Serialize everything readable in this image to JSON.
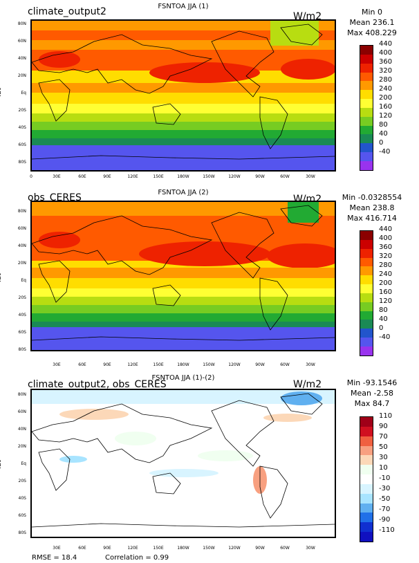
{
  "panels": [
    {
      "title_left": "climate_output2",
      "title_mid": "FSNTOA JJA (1)",
      "units": "W/m2",
      "stats": [
        "Min 0",
        "Mean 236.1",
        "Max 408.229"
      ],
      "ylabel": "lat",
      "lat_ticks": [
        "80N",
        "60N",
        "40N",
        "20N",
        "Eq",
        "20S",
        "40S",
        "60S",
        "80S"
      ],
      "lon_ticks": [
        "0",
        "30E",
        "60E",
        "90E",
        "120E",
        "150E",
        "180W",
        "150W",
        "120W",
        "90W",
        "60W",
        "30W"
      ],
      "colorbar_labels": [
        "440",
        "400",
        "360",
        "320",
        "280",
        "240",
        "200",
        "160",
        "120",
        "80",
        "40",
        "0",
        "-40"
      ],
      "colorbar_colors": [
        "#8b0000",
        "#cc0000",
        "#ee2200",
        "#ff5a00",
        "#ff9900",
        "#ffdd00",
        "#ffff33",
        "#b8dd11",
        "#77cc22",
        "#22aa33",
        "#1a8a55",
        "#2255cc",
        "#5555ee",
        "#9933ee"
      ]
    },
    {
      "title_left": "obs_CERES",
      "title_mid": "FSNTOA JJA (2)",
      "units": "W/m2",
      "stats": [
        "Min -0.0328554",
        "Mean 238.8",
        "Max 416.714"
      ],
      "ylabel": "lat",
      "lat_ticks": [
        "80N",
        "60N",
        "40N",
        "20N",
        "Eq",
        "20S",
        "40S",
        "60S",
        "80S"
      ],
      "lon_ticks": [
        "30E",
        "60E",
        "90E",
        "120E",
        "150E",
        "180W",
        "150W",
        "120W",
        "90W",
        "60W",
        "30W"
      ],
      "colorbar_labels": [
        "440",
        "400",
        "360",
        "320",
        "280",
        "240",
        "200",
        "160",
        "120",
        "80",
        "40",
        "0",
        "-40"
      ],
      "colorbar_colors": [
        "#8b0000",
        "#cc0000",
        "#ee2200",
        "#ff5a00",
        "#ff9900",
        "#ffdd00",
        "#ffff33",
        "#b8dd11",
        "#77cc22",
        "#22aa33",
        "#1a8a55",
        "#2255cc",
        "#5555ee",
        "#9933ee"
      ]
    },
    {
      "title_left": "climate_output2, obs_CERES",
      "title_mid": "FSNTOA JJA (1)-(2)",
      "units": "W/m2",
      "stats": [
        "Min -93.1546",
        "Mean -2.58",
        "Max 84.7"
      ],
      "ylabel": "lat",
      "lat_ticks": [
        "80N",
        "60N",
        "40N",
        "20N",
        "Eq",
        "20S",
        "40S",
        "60S",
        "80S"
      ],
      "lon_ticks": [
        "30E",
        "60E",
        "90E",
        "120E",
        "150E",
        "180W",
        "150W",
        "120W",
        "90W",
        "60W",
        "30W"
      ],
      "colorbar_labels": [
        "110",
        "90",
        "70",
        "50",
        "30",
        "10",
        "-10",
        "-30",
        "-50",
        "-70",
        "-90",
        "-110"
      ],
      "colorbar_colors": [
        "#a00018",
        "#d01020",
        "#f06040",
        "#f8a080",
        "#fcd8b8",
        "#f0fff0",
        "#ffffff",
        "#d8f4ff",
        "#a8e4ff",
        "#60b0f0",
        "#2070e8",
        "#1030d0",
        "#1010c0"
      ]
    }
  ],
  "footer": {
    "rmse": "RMSE = 18.4",
    "correlation": "Correlation = 0.99"
  }
}
